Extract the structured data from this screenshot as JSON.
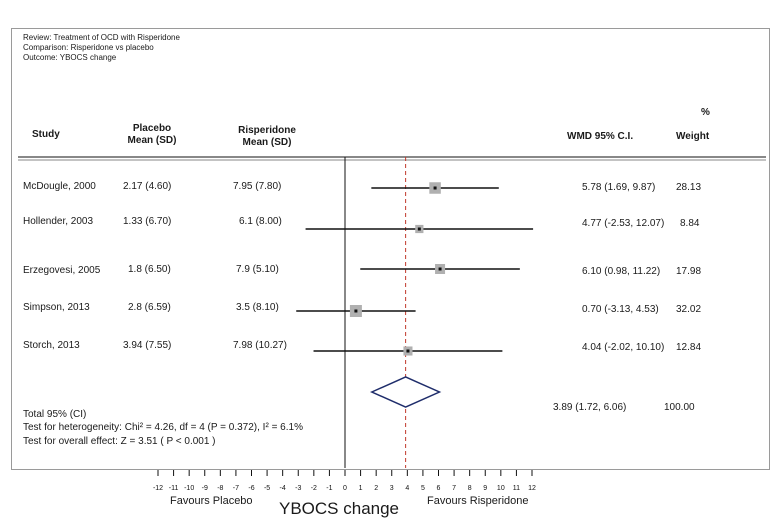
{
  "meta": {
    "review": "Review:  Treatment of OCD with Risperidone",
    "comparison": "Comparison:  Risperidone vs placebo",
    "outcome": "Outcome:  YBOCS change"
  },
  "headers": {
    "study": "Study",
    "placebo_line1": "Placebo",
    "placebo_line2": "Mean (SD)",
    "risp_line1": "Risperidone",
    "risp_line2": "Mean (SD)",
    "wmd": "WMD 95%  C.I.",
    "pct": "%",
    "weight": "Weight"
  },
  "rows": [
    {
      "study": "McDougle, 2000",
      "placebo": "2.17 (4.60)",
      "risp": "7.95 (7.80)",
      "wmd_text": "5.78 (1.69, 9.87)",
      "weight": "28.13"
    },
    {
      "study": "Hollender, 2003",
      "placebo": "1.33 (6.70)",
      "risp": "6.1 (8.00)",
      "wmd_text": "4.77 (-2.53, 12.07)",
      "weight": "8.84"
    },
    {
      "study": "Erzegovesi, 2005",
      "placebo": "1.8 (6.50)",
      "risp": "7.9 (5.10)",
      "wmd_text": "6.10 (0.98, 11.22)",
      "weight": "17.98"
    },
    {
      "study": "Simpson, 2013",
      "placebo": "2.8 (6.59)",
      "risp": "3.5 (8.10)",
      "wmd_text": "0.70 (-3.13, 4.53)",
      "weight": "32.02"
    },
    {
      "study": "Storch, 2013",
      "placebo": "3.94 (7.55)",
      "risp": "7.98 (10.27)",
      "wmd_text": "4.04 (-2.02, 10.10)",
      "weight": "12.84"
    }
  ],
  "total": {
    "label": "Total 95% (CI)",
    "wmd_text": "3.89 (1.72, 6.06)",
    "weight": "100.00",
    "heterogeneity": "Test for heterogeneity: Chi² = 4.26, df = 4 (P = 0.372), I² = 6.1%",
    "overall": "Test for overall effect:  Z = 3.51  ( P < 0.001 )"
  },
  "xaxis": {
    "favours_left": "Favours Placebo",
    "favours_right": "Favours Risperidone",
    "title": "YBOCS change"
  },
  "chart_data": {
    "type": "forest",
    "xlim": [
      -12,
      12
    ],
    "xticks": [
      -12,
      -11,
      -10,
      -9,
      -8,
      -7,
      -6,
      -5,
      -4,
      -3,
      -2,
      -1,
      0,
      1,
      2,
      3,
      4,
      5,
      6,
      7,
      8,
      9,
      10,
      11,
      12
    ],
    "x_title": "YBOCS change",
    "null_line": 0,
    "pooled_line": 3.89,
    "studies": [
      {
        "name": "McDougle, 2000",
        "effect": 5.78,
        "ci": [
          1.69,
          9.87
        ],
        "weight": 28.13
      },
      {
        "name": "Hollender, 2003",
        "effect": 4.77,
        "ci": [
          -2.53,
          12.07
        ],
        "weight": 8.84
      },
      {
        "name": "Erzegovesi, 2005",
        "effect": 6.1,
        "ci": [
          0.98,
          11.22
        ],
        "weight": 17.98
      },
      {
        "name": "Simpson, 2013",
        "effect": 0.7,
        "ci": [
          -3.13,
          4.53
        ],
        "weight": 32.02
      },
      {
        "name": "Storch, 2013",
        "effect": 4.04,
        "ci": [
          -2.02,
          10.1
        ],
        "weight": 12.84
      }
    ],
    "pooled": {
      "effect": 3.89,
      "ci": [
        1.72,
        6.06
      ],
      "weight": 100.0
    },
    "colors": {
      "pooled_line": "#c0392b",
      "diamond": "#1f2d6b",
      "ci": "#111111",
      "box": "#b0b0b0"
    }
  }
}
